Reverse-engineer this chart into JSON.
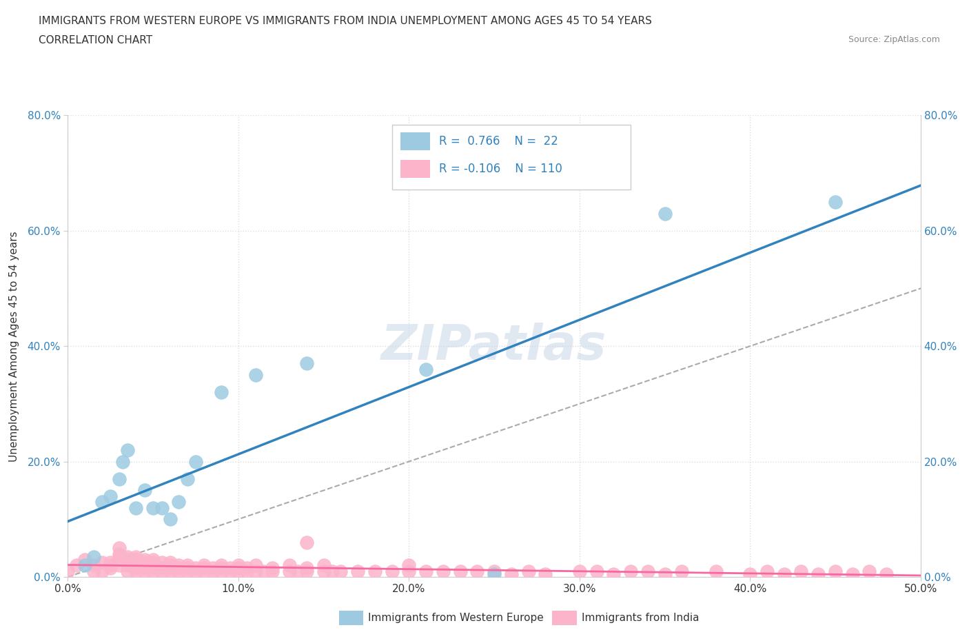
{
  "title_line1": "IMMIGRANTS FROM WESTERN EUROPE VS IMMIGRANTS FROM INDIA UNEMPLOYMENT AMONG AGES 45 TO 54 YEARS",
  "title_line2": "CORRELATION CHART",
  "source_text": "Source: ZipAtlas.com",
  "ylabel_label": "Unemployment Among Ages 45 to 54 years",
  "legend_label_blue": "Immigrants from Western Europe",
  "legend_label_pink": "Immigrants from India",
  "R_blue": 0.766,
  "N_blue": 22,
  "R_pink": -0.106,
  "N_pink": 110,
  "watermark": "ZIPatlas",
  "blue_color": "#9ecae1",
  "pink_color": "#fbb4c9",
  "blue_line_color": "#3182bd",
  "pink_line_color": "#f768a1",
  "trendline_dashed_color": "#aaaaaa",
  "background_color": "#ffffff",
  "grid_color": "#dddddd",
  "blue_scatter": [
    [
      0.01,
      0.02
    ],
    [
      0.015,
      0.035
    ],
    [
      0.02,
      0.13
    ],
    [
      0.025,
      0.14
    ],
    [
      0.03,
      0.17
    ],
    [
      0.032,
      0.2
    ],
    [
      0.035,
      0.22
    ],
    [
      0.04,
      0.12
    ],
    [
      0.045,
      0.15
    ],
    [
      0.05,
      0.12
    ],
    [
      0.055,
      0.12
    ],
    [
      0.06,
      0.1
    ],
    [
      0.065,
      0.13
    ],
    [
      0.07,
      0.17
    ],
    [
      0.075,
      0.2
    ],
    [
      0.09,
      0.32
    ],
    [
      0.11,
      0.35
    ],
    [
      0.14,
      0.37
    ],
    [
      0.21,
      0.36
    ],
    [
      0.25,
      0.005
    ],
    [
      0.35,
      0.63
    ],
    [
      0.45,
      0.65
    ]
  ],
  "pink_scatter": [
    [
      0.0,
      0.01
    ],
    [
      0.005,
      0.02
    ],
    [
      0.01,
      0.03
    ],
    [
      0.015,
      0.01
    ],
    [
      0.015,
      0.02
    ],
    [
      0.02,
      0.01
    ],
    [
      0.02,
      0.025
    ],
    [
      0.025,
      0.015
    ],
    [
      0.025,
      0.02
    ],
    [
      0.025,
      0.025
    ],
    [
      0.03,
      0.02
    ],
    [
      0.03,
      0.03
    ],
    [
      0.03,
      0.035
    ],
    [
      0.03,
      0.04
    ],
    [
      0.03,
      0.05
    ],
    [
      0.035,
      0.01
    ],
    [
      0.035,
      0.02
    ],
    [
      0.035,
      0.03
    ],
    [
      0.035,
      0.035
    ],
    [
      0.04,
      0.01
    ],
    [
      0.04,
      0.015
    ],
    [
      0.04,
      0.02
    ],
    [
      0.04,
      0.025
    ],
    [
      0.04,
      0.03
    ],
    [
      0.04,
      0.035
    ],
    [
      0.045,
      0.01
    ],
    [
      0.045,
      0.015
    ],
    [
      0.045,
      0.02
    ],
    [
      0.045,
      0.025
    ],
    [
      0.045,
      0.03
    ],
    [
      0.05,
      0.01
    ],
    [
      0.05,
      0.015
    ],
    [
      0.05,
      0.02
    ],
    [
      0.05,
      0.025
    ],
    [
      0.05,
      0.03
    ],
    [
      0.055,
      0.01
    ],
    [
      0.055,
      0.015
    ],
    [
      0.055,
      0.025
    ],
    [
      0.06,
      0.01
    ],
    [
      0.06,
      0.015
    ],
    [
      0.06,
      0.02
    ],
    [
      0.06,
      0.025
    ],
    [
      0.065,
      0.01
    ],
    [
      0.065,
      0.015
    ],
    [
      0.065,
      0.02
    ],
    [
      0.07,
      0.01
    ],
    [
      0.07,
      0.015
    ],
    [
      0.07,
      0.02
    ],
    [
      0.075,
      0.01
    ],
    [
      0.075,
      0.015
    ],
    [
      0.08,
      0.01
    ],
    [
      0.08,
      0.015
    ],
    [
      0.08,
      0.02
    ],
    [
      0.085,
      0.01
    ],
    [
      0.085,
      0.015
    ],
    [
      0.09,
      0.01
    ],
    [
      0.09,
      0.015
    ],
    [
      0.09,
      0.02
    ],
    [
      0.095,
      0.01
    ],
    [
      0.095,
      0.015
    ],
    [
      0.1,
      0.01
    ],
    [
      0.1,
      0.015
    ],
    [
      0.1,
      0.02
    ],
    [
      0.105,
      0.01
    ],
    [
      0.105,
      0.015
    ],
    [
      0.11,
      0.01
    ],
    [
      0.11,
      0.02
    ],
    [
      0.115,
      0.01
    ],
    [
      0.12,
      0.01
    ],
    [
      0.12,
      0.015
    ],
    [
      0.13,
      0.01
    ],
    [
      0.13,
      0.02
    ],
    [
      0.135,
      0.01
    ],
    [
      0.14,
      0.01
    ],
    [
      0.14,
      0.015
    ],
    [
      0.14,
      0.06
    ],
    [
      0.15,
      0.01
    ],
    [
      0.15,
      0.02
    ],
    [
      0.155,
      0.01
    ],
    [
      0.16,
      0.01
    ],
    [
      0.17,
      0.01
    ],
    [
      0.18,
      0.01
    ],
    [
      0.19,
      0.01
    ],
    [
      0.2,
      0.01
    ],
    [
      0.2,
      0.02
    ],
    [
      0.21,
      0.01
    ],
    [
      0.22,
      0.01
    ],
    [
      0.23,
      0.01
    ],
    [
      0.24,
      0.01
    ],
    [
      0.25,
      0.01
    ],
    [
      0.26,
      0.005
    ],
    [
      0.27,
      0.01
    ],
    [
      0.28,
      0.005
    ],
    [
      0.3,
      0.01
    ],
    [
      0.31,
      0.01
    ],
    [
      0.32,
      0.005
    ],
    [
      0.33,
      0.01
    ],
    [
      0.34,
      0.01
    ],
    [
      0.35,
      0.005
    ],
    [
      0.36,
      0.01
    ],
    [
      0.38,
      0.01
    ],
    [
      0.4,
      0.005
    ],
    [
      0.41,
      0.01
    ],
    [
      0.42,
      0.005
    ],
    [
      0.43,
      0.01
    ],
    [
      0.44,
      0.005
    ],
    [
      0.45,
      0.01
    ],
    [
      0.46,
      0.005
    ],
    [
      0.47,
      0.01
    ],
    [
      0.48,
      0.005
    ]
  ],
  "xlim": [
    0.0,
    0.5
  ],
  "ylim": [
    0.0,
    0.8
  ]
}
